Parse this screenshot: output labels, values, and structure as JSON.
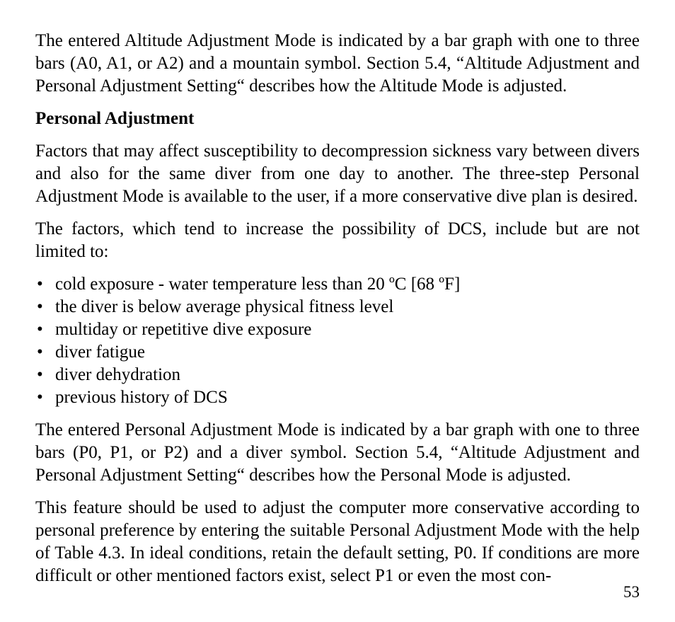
{
  "background_color": "#ffffff",
  "text_color": "#000000",
  "font_family": "Times New Roman",
  "body_fontsize_pt": 19,
  "paragraphs": {
    "p1": "The entered Altitude Adjustment Mode is indicated by a bar graph with one to three bars (A0, A1, or A2) and a mountain symbol. Section 5.4, “Altitude Adjustment and Personal Adjustment Setting“ describes how the Altitude Mode is adjusted.",
    "heading": "Personal Adjustment",
    "p2": "Factors that may affect susceptibility to decompression sickness vary between divers and also for the same diver from one day to another. The three-step Personal Adjustment Mode is available to the user, if a more conservative dive plan is desired.",
    "p3": "The factors, which tend to increase the possibility of DCS, include but are not limited to:",
    "p4": "The entered Personal Adjustment Mode is indicated by a bar graph with one to three bars (P0, P1, or P2) and a diver symbol. Section 5.4, “Altitude Adjustment and Personal Adjustment Setting“ describes how the Personal Mode is adjusted.",
    "p5": "This feature should be used to adjust the computer more conservative according to personal preference by entering the suitable Personal Adjustment Mode with the help of Table 4.3. In ideal conditions, retain the default setting, P0. If conditions are more difficult or other mentioned factors exist, select P1 or even the most con-"
  },
  "list_items": [
    "cold exposure - water temperature less than 20 ºC [68 ºF]",
    "the diver is below average physical fitness level",
    "multiday or repetitive dive exposure",
    "diver fatigue",
    "diver dehydration",
    "previous history of DCS"
  ],
  "page_number": "53"
}
